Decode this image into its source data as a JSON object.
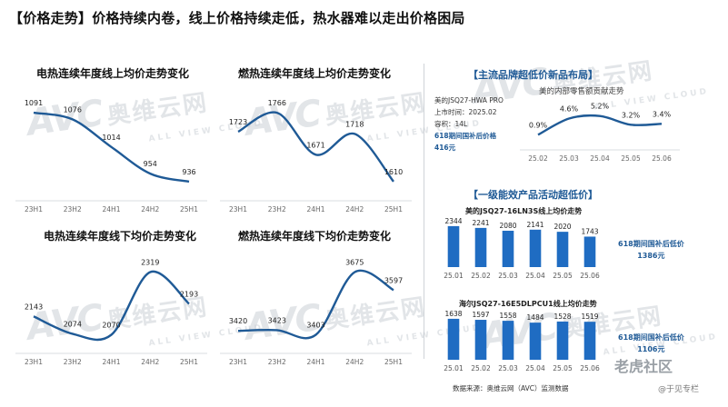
{
  "headline": "【价格走势】价格持续内卷，线上价格持续走低，热水器难以走出价格困局",
  "watermark": {
    "logo": "AVC",
    "cn": "奥维云网",
    "en": "ALL VIEW CLOUD"
  },
  "line_charts": [
    {
      "title": "电热连续年度线上均价走势变化",
      "x": [
        "23H1",
        "23H2",
        "24H1",
        "24H2",
        "25H1"
      ],
      "values": [
        1091,
        1076,
        1014,
        954,
        936
      ]
    },
    {
      "title": "燃热连续年度线上均价走势变化",
      "x": [
        "23H1",
        "23H2",
        "24H1",
        "24H2",
        "25H1"
      ],
      "values": [
        1723,
        1766,
        1671,
        1718,
        1610
      ]
    },
    {
      "title": "电热连续年度线下均价走势变化",
      "x": [
        "23H1",
        "23H2",
        "24H1",
        "24H2",
        "25H1"
      ],
      "values": [
        2143,
        2074,
        2070,
        2319,
        2193
      ]
    },
    {
      "title": "燃热连续年度线下均价走势变化",
      "x": [
        "23H1",
        "23H2",
        "24H1",
        "24H2",
        "25H1"
      ],
      "values": [
        3420,
        3423,
        3403,
        3675,
        3597
      ]
    }
  ],
  "new_product": {
    "section_title": "【主流品牌超低价新品布局】",
    "chart_title": "美的内部零售额贡献走势",
    "info_lines": [
      "美的JSQ27-HWA PRO",
      "上市时间：2025.02",
      "容积：14L",
      "618期间国补后价格",
      "416元"
    ],
    "x": [
      "25.02",
      "25.03",
      "25.04",
      "25.05",
      "25.06"
    ],
    "values": [
      0.9,
      4.6,
      5.2,
      3.2,
      3.4
    ],
    "labels": [
      "0.9%",
      "4.6%",
      "5.2%",
      "3.2%",
      "3.4%"
    ]
  },
  "energy_section_title": "【一级能效产品活动超低价】",
  "bar_charts": [
    {
      "title": "美的JSQ27-16LN3S线上均价走势",
      "x": [
        "25.01",
        "25.02",
        "25.03",
        "25.04",
        "25.05",
        "25.06"
      ],
      "values": [
        2344,
        2241,
        2080,
        2141,
        2020,
        1743
      ],
      "promo_line1": "618期间国补后低价",
      "promo_line2": "1386元"
    },
    {
      "title": "海尔JSQ27-16E5DLPCU1线上均价走势",
      "x": [
        "25.01",
        "25.02",
        "25.03",
        "25.04",
        "25.05",
        "25.06"
      ],
      "values": [
        1638,
        1597,
        1558,
        1484,
        1528,
        1519
      ],
      "promo_line1": "618期间国补后低价",
      "promo_line2": "1106元"
    }
  ],
  "source": "数据来源：奥维云网（AVC）监测数据",
  "badge": "老虎社区",
  "badge_sub": "@于见专栏",
  "colors": {
    "line": "#1f5a96",
    "bar": "#1f6cc2",
    "section": "#1f5a96"
  },
  "chart_data": [
    {
      "type": "line",
      "title": "电热连续年度线上均价走势变化",
      "x": [
        "23H1",
        "23H2",
        "24H1",
        "24H2",
        "25H1"
      ],
      "values": [
        1091,
        1076,
        1014,
        954,
        936
      ]
    },
    {
      "type": "line",
      "title": "燃热连续年度线上均价走势变化",
      "x": [
        "23H1",
        "23H2",
        "24H1",
        "24H2",
        "25H1"
      ],
      "values": [
        1723,
        1766,
        1671,
        1718,
        1610
      ]
    },
    {
      "type": "line",
      "title": "电热连续年度线下均价走势变化",
      "x": [
        "23H1",
        "23H2",
        "24H1",
        "24H2",
        "25H1"
      ],
      "values": [
        2143,
        2074,
        2070,
        2319,
        2193
      ]
    },
    {
      "type": "line",
      "title": "燃热连续年度线下均价走势变化",
      "x": [
        "23H1",
        "23H2",
        "24H1",
        "24H2",
        "25H1"
      ],
      "values": [
        3420,
        3423,
        3403,
        3675,
        3597
      ]
    },
    {
      "type": "line",
      "title": "美的内部零售额贡献走势",
      "x": [
        "25.02",
        "25.03",
        "25.04",
        "25.05",
        "25.06"
      ],
      "values": [
        0.9,
        4.6,
        5.2,
        3.2,
        3.4
      ]
    },
    {
      "type": "bar",
      "title": "美的JSQ27-16LN3S线上均价走势",
      "categories": [
        "25.01",
        "25.02",
        "25.03",
        "25.04",
        "25.05",
        "25.06"
      ],
      "values": [
        2344,
        2241,
        2080,
        2141,
        2020,
        1743
      ]
    },
    {
      "type": "bar",
      "title": "海尔JSQ27-16E5DLPCU1线上均价走势",
      "categories": [
        "25.01",
        "25.02",
        "25.03",
        "25.04",
        "25.05",
        "25.06"
      ],
      "values": [
        1638,
        1597,
        1558,
        1484,
        1528,
        1519
      ]
    }
  ]
}
